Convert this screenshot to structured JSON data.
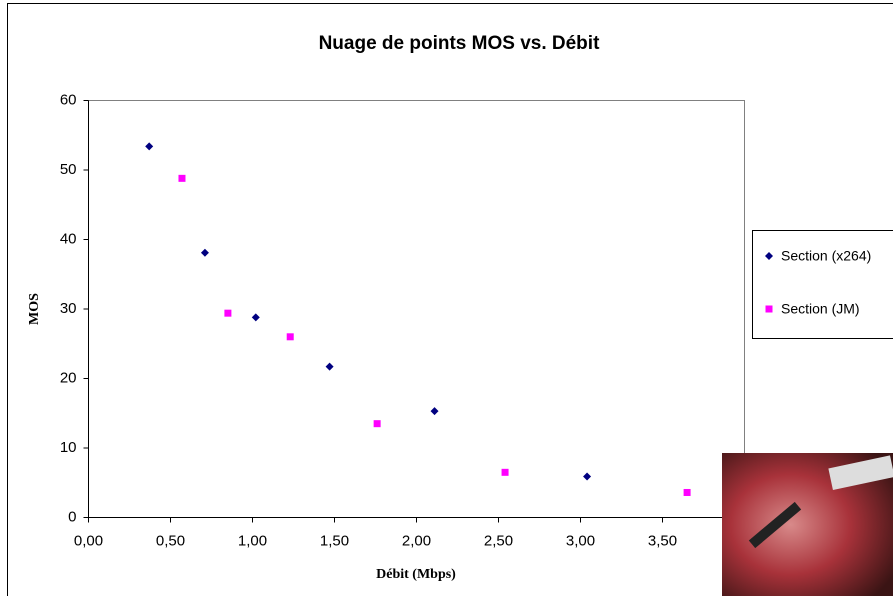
{
  "chart_data": {
    "type": "scatter",
    "title": "Nuage de points MOS vs. Débit",
    "x_label": "Débit (Mbps)",
    "y_label": "MOS",
    "xlim": [
      0,
      4
    ],
    "ylim": [
      0,
      60
    ],
    "xticks": [
      {
        "value": 0,
        "label": "0,00"
      },
      {
        "value": 0.5,
        "label": "0,50"
      },
      {
        "value": 1,
        "label": "1,00"
      },
      {
        "value": 1.5,
        "label": "1,50"
      },
      {
        "value": 2,
        "label": "2,00"
      },
      {
        "value": 2.5,
        "label": "2,50"
      },
      {
        "value": 3,
        "label": "3,00"
      },
      {
        "value": 3.5,
        "label": "3,50"
      }
    ],
    "yticks": [
      0,
      10,
      20,
      30,
      40,
      50,
      60
    ],
    "series": [
      {
        "name": "Section (x264)",
        "color": "#000080",
        "marker": "diamond",
        "x": [
          0.37,
          0.71,
          1.02,
          1.47,
          2.11,
          3.04
        ],
        "values": [
          53.4,
          38.1,
          28.8,
          21.7,
          15.3,
          5.9
        ]
      },
      {
        "name": "Section (JM)",
        "color": "#ff00ff",
        "marker": "square",
        "x": [
          0.57,
          0.85,
          1.23,
          1.76,
          2.54,
          3.65
        ],
        "values": [
          48.8,
          29.4,
          26.0,
          13.5,
          6.5,
          3.6
        ]
      }
    ]
  }
}
